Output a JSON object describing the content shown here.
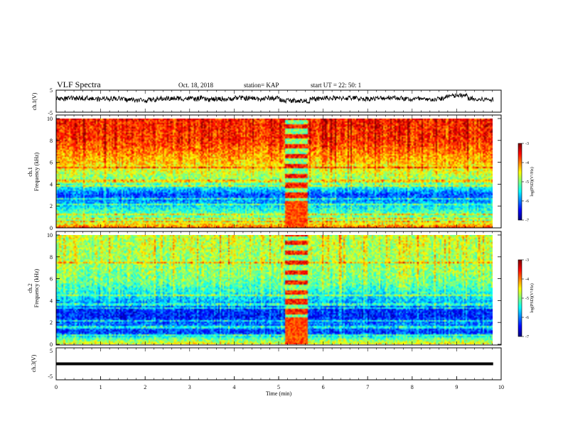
{
  "header": {
    "title": "VLF Spectra",
    "date": "Oct. 18, 2018",
    "station": "station= KAP",
    "start": "start  UT =   22: 50: 1"
  },
  "chart_data": [
    {
      "type": "line",
      "name": "ch1-voltage",
      "ylabel": "ch.1(V)",
      "yticks": [
        "5",
        "-5"
      ],
      "ylim": [
        -5,
        5
      ],
      "xlim": [
        0,
        10
      ],
      "trace_level_mean": 1.2,
      "trace_noise_amplitude": 1.1
    },
    {
      "type": "heatmap",
      "name": "ch1-spectrogram",
      "ylabel": "ch.1 Frequency (kHz)",
      "ylabel_line1": "ch.1",
      "ylabel_line2": "Frequency (kHz)",
      "yticks": [
        "0",
        "2",
        "4",
        "6",
        "8",
        "10"
      ],
      "ylim": [
        0,
        10
      ],
      "xlim": [
        0,
        10
      ],
      "colorbar": {
        "label": "log(PSD)(V²/Hz)",
        "ticks": [
          "-3",
          "-4",
          "-5",
          "-6",
          "-7"
        ],
        "range": [
          -7,
          -3
        ]
      },
      "burst_interval_min": [
        5.15,
        5.65
      ],
      "background_levels": [
        {
          "f": 0.0,
          "v": -3.9
        },
        {
          "f": 0.6,
          "v": -5.0
        },
        {
          "f": 1.2,
          "v": -5.1
        },
        {
          "f": 1.8,
          "v": -5.5
        },
        {
          "f": 2.4,
          "v": -5.9
        },
        {
          "f": 3.0,
          "v": -6.2
        },
        {
          "f": 3.5,
          "v": -5.7
        },
        {
          "f": 4.0,
          "v": -5.1
        },
        {
          "f": 5.0,
          "v": -4.7
        },
        {
          "f": 6.0,
          "v": -4.3
        },
        {
          "f": 7.0,
          "v": -4.0
        },
        {
          "f": 8.0,
          "v": -3.7
        },
        {
          "f": 10.0,
          "v": -3.6
        }
      ],
      "horizontal_lines_khz": [
        0.5,
        0.8,
        1.2,
        2.1,
        2.6,
        3.8,
        4.3,
        5.5
      ]
    },
    {
      "type": "heatmap",
      "name": "ch2-spectrogram",
      "ylabel": "ch.2 Frequency (kHz)",
      "ylabel_line1": "ch.2",
      "ylabel_line2": "Frequency (kHz)",
      "yticks": [
        "0",
        "2",
        "4",
        "6",
        "8",
        "10"
      ],
      "ylim": [
        0,
        10
      ],
      "xlim": [
        0,
        10
      ],
      "colorbar": {
        "label": "log(PSD)(V²/Hz)",
        "ticks": [
          "-3",
          "-4",
          "-5",
          "-6",
          "-7"
        ],
        "range": [
          -7,
          -3
        ]
      },
      "burst_interval_min": [
        5.15,
        5.65
      ],
      "background_levels": [
        {
          "f": 0.0,
          "v": -4.6
        },
        {
          "f": 0.5,
          "v": -5.2
        },
        {
          "f": 1.0,
          "v": -6.3
        },
        {
          "f": 1.8,
          "v": -6.0
        },
        {
          "f": 2.5,
          "v": -6.4
        },
        {
          "f": 3.2,
          "v": -6.3
        },
        {
          "f": 4.0,
          "v": -5.7
        },
        {
          "f": 5.0,
          "v": -5.3
        },
        {
          "f": 6.0,
          "v": -5.0
        },
        {
          "f": 7.0,
          "v": -4.9
        },
        {
          "f": 8.0,
          "v": -4.8
        },
        {
          "f": 10.0,
          "v": -4.7
        }
      ],
      "horizontal_lines_khz": [
        0.8,
        1.5,
        2.1,
        3.3,
        3.6,
        4.5,
        7.5
      ]
    },
    {
      "type": "line",
      "name": "ch3-voltage",
      "ylabel": "ch.3(V)",
      "yticks": [
        "5",
        "-5"
      ],
      "ylim": [
        -5,
        5
      ],
      "xlim": [
        0,
        10
      ],
      "trace_level_mean": 0,
      "trace_noise_amplitude": 0.05,
      "xlabel": "Time (min)",
      "xticks": [
        "0",
        "1",
        "2",
        "3",
        "4",
        "5",
        "6",
        "7",
        "8",
        "9",
        "10"
      ]
    }
  ]
}
